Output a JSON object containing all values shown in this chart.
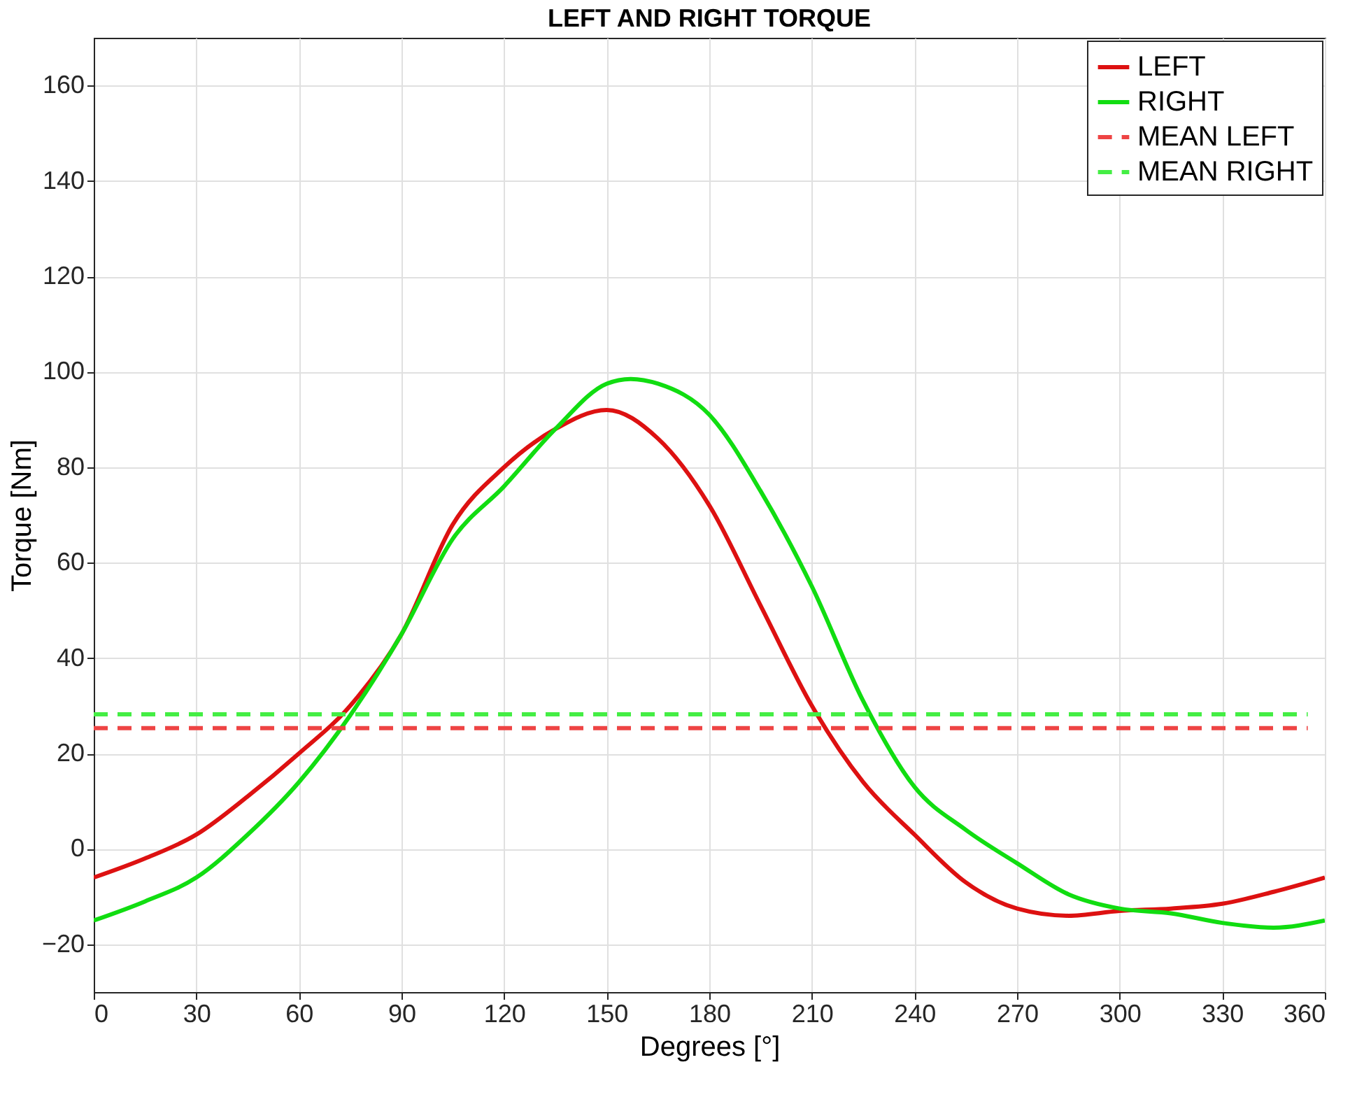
{
  "chart_data": {
    "type": "line",
    "title": "LEFT AND RIGHT TORQUE",
    "xlabel": "Degrees [°]",
    "ylabel": "Torque [Nm]",
    "xlim": [
      0,
      360
    ],
    "xticks": [
      0,
      30,
      60,
      90,
      120,
      150,
      180,
      210,
      240,
      270,
      300,
      330,
      360
    ],
    "ylim": [
      -30,
      170
    ],
    "yticks": [
      -20,
      0,
      20,
      40,
      60,
      80,
      100,
      120,
      140,
      160
    ],
    "grid": true,
    "legend": "top right",
    "marker": "none",
    "line_style": "solid",
    "series": [
      {
        "name": "LEFT",
        "color": "#dd1111",
        "x": [
          0,
          15,
          30,
          45,
          60,
          75,
          90,
          105,
          120,
          135,
          150,
          165,
          180,
          195,
          210,
          225,
          240,
          255,
          270,
          285,
          300,
          315,
          330,
          345,
          360
        ],
        "values": [
          -6,
          -2,
          3,
          11,
          20,
          30,
          45,
          68,
          80,
          88,
          92,
          86,
          72,
          51,
          30,
          14,
          3,
          -7,
          -12.5,
          -14,
          -13,
          -12.5,
          -11.5,
          -9,
          -6
        ]
      },
      {
        "name": "RIGHT",
        "color": "#11dd11",
        "x": [
          0,
          15,
          30,
          45,
          60,
          75,
          90,
          105,
          120,
          135,
          150,
          157,
          165,
          180,
          195,
          210,
          225,
          240,
          255,
          270,
          285,
          300,
          315,
          330,
          345,
          360
        ],
        "values": [
          -15,
          -11,
          -6,
          3,
          14,
          28,
          45,
          65,
          76,
          88,
          97.5,
          98.5,
          97.5,
          91,
          75,
          55,
          31,
          13,
          4,
          -3,
          -9.5,
          -12.5,
          -13.5,
          -15.5,
          -16.5,
          -15
        ]
      },
      {
        "name": "MEAN LEFT",
        "color": "#ee4444",
        "line_style": "dashed",
        "x": [
          0,
          355
        ],
        "values": [
          25.3,
          25.3
        ]
      },
      {
        "name": "MEAN RIGHT",
        "color": "#44ee44",
        "line_style": "dashed",
        "x": [
          0,
          355
        ],
        "values": [
          28.2,
          28.2
        ]
      }
    ]
  }
}
